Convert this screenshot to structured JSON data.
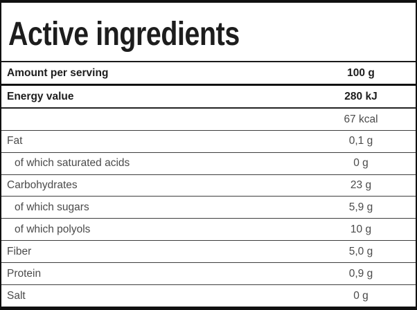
{
  "header": {
    "title": "Active ingredients"
  },
  "table": {
    "rows": [
      {
        "label": "Amount per serving",
        "value": "100 g",
        "emphasis": true,
        "indent": false
      },
      {
        "label": "Energy value",
        "value": "280 kJ",
        "emphasis": true,
        "indent": false
      },
      {
        "label": "",
        "value": "67 kcal",
        "emphasis": false,
        "indent": false
      },
      {
        "label": "Fat",
        "value": "0,1 g",
        "emphasis": false,
        "indent": false
      },
      {
        "label": "of which saturated acids",
        "value": "0 g",
        "emphasis": false,
        "indent": true
      },
      {
        "label": "Carbohydrates",
        "value": "23 g",
        "emphasis": false,
        "indent": false
      },
      {
        "label": "of which sugars",
        "value": "5,9 g",
        "emphasis": false,
        "indent": true
      },
      {
        "label": "of which polyols",
        "value": "10 g",
        "emphasis": false,
        "indent": true
      },
      {
        "label": "Fiber",
        "value": "5,0 g",
        "emphasis": false,
        "indent": false
      },
      {
        "label": "Protein",
        "value": "0,9 g",
        "emphasis": false,
        "indent": false
      },
      {
        "label": "Salt",
        "value": "0 g",
        "emphasis": false,
        "indent": false
      }
    ]
  },
  "colors": {
    "background": "#ffffff",
    "outer_border": "#101010",
    "heading_text": "#1d1d1d",
    "body_text": "#4a4a4a",
    "row_separator": "#3c3c3c"
  }
}
